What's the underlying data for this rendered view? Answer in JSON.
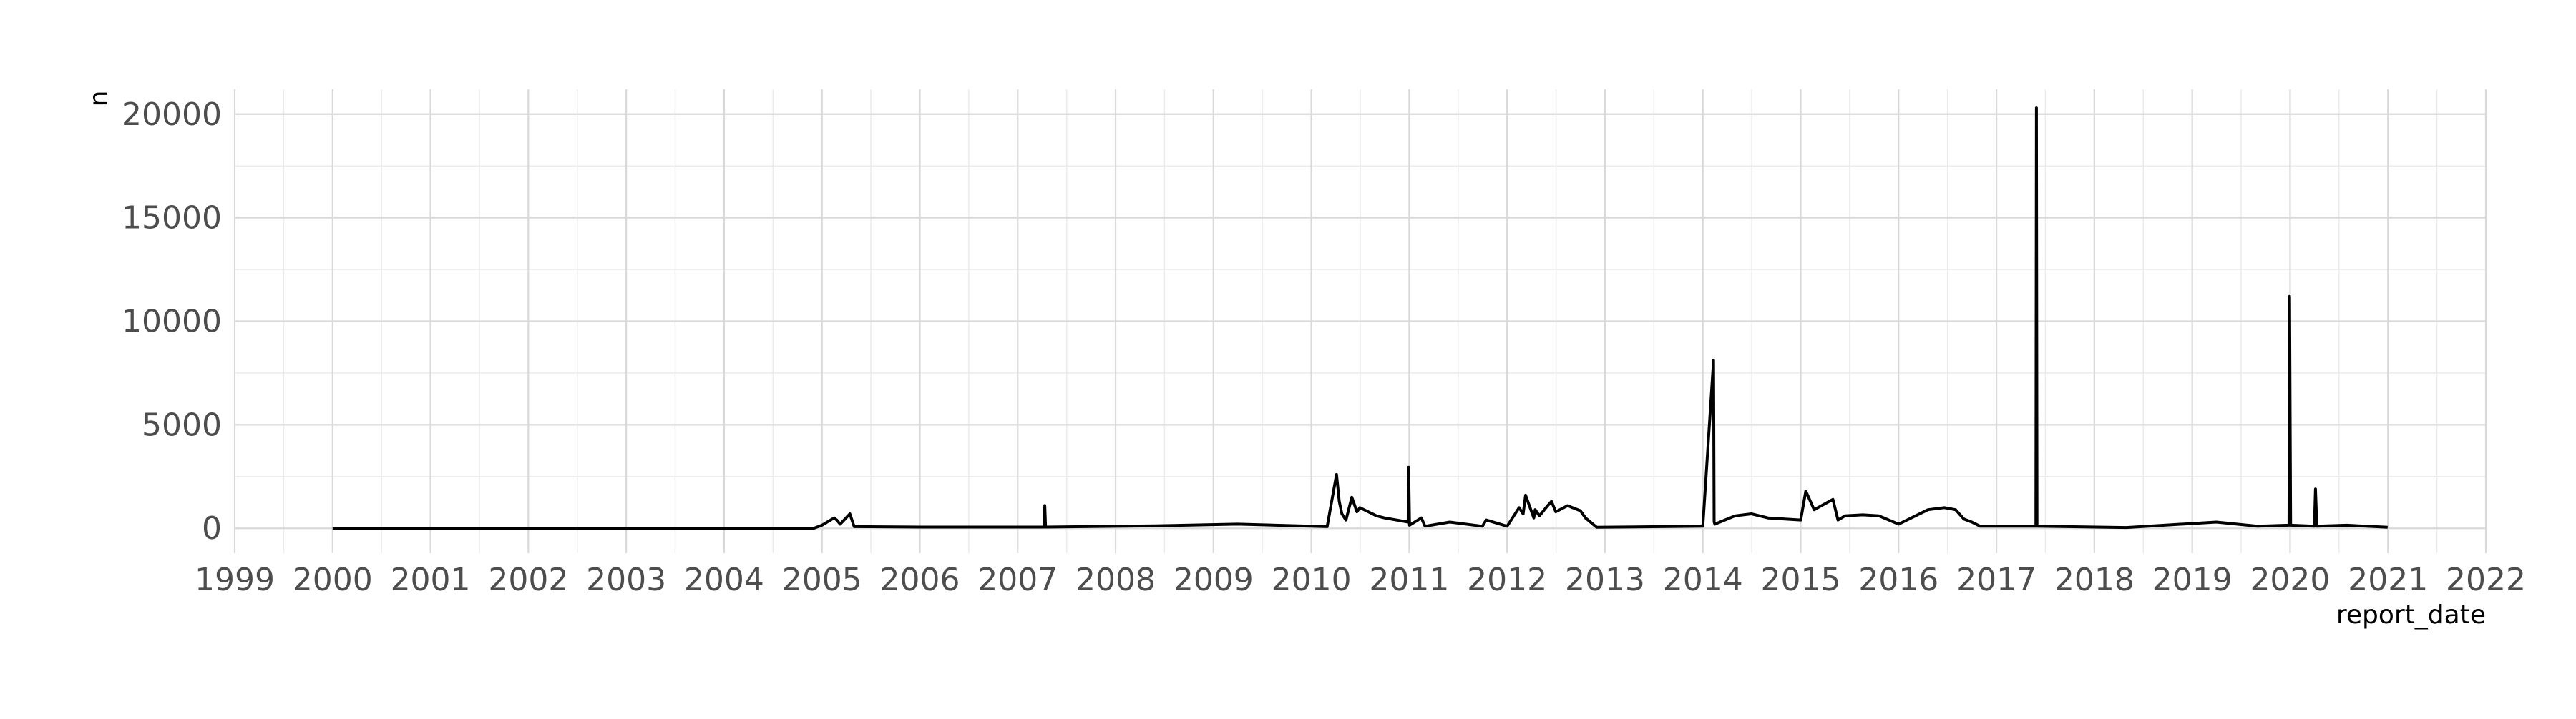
{
  "chart_data": {
    "type": "line",
    "title": "",
    "xlabel": "report_date",
    "ylabel": "n",
    "x_ticks": [
      "1999",
      "2000",
      "2001",
      "2002",
      "2003",
      "2004",
      "2005",
      "2006",
      "2007",
      "2008",
      "2009",
      "2010",
      "2011",
      "2012",
      "2013",
      "2014",
      "2015",
      "2016",
      "2017",
      "2018",
      "2019",
      "2020",
      "2021",
      "2022"
    ],
    "y_ticks": [
      "0",
      "5000",
      "10000",
      "15000",
      "20000"
    ],
    "xlim": [
      "1999-01-01",
      "2022-01-01"
    ],
    "ylim": [
      -1200,
      21200
    ],
    "grid": true,
    "legend": "none",
    "colors": {
      "line": "#000000",
      "grid_major": "#d9d9d9",
      "grid_minor": "#ebebeb",
      "tick_text": "#4d4d4d"
    },
    "series": [
      {
        "x": [
          "2000-01-01",
          "2004-12-01",
          "2005-01-01",
          "2005-02-15",
          "2005-02-25",
          "2005-03-10",
          "2005-04-15",
          "2005-05-01",
          "2006-01-01",
          "2007-04-10",
          "2007-04-12",
          "2007-04-15",
          "2008-06-01",
          "2009-04-01",
          "2010-03-01",
          "2010-04-05",
          "2010-04-15",
          "2010-04-25",
          "2010-05-10",
          "2010-06-01",
          "2010-06-20",
          "2010-07-01",
          "2010-09-01",
          "2010-10-01",
          "2010-12-28",
          "2010-12-30",
          "2011-01-02",
          "2011-02-15",
          "2011-03-01",
          "2011-06-01",
          "2011-10-01",
          "2011-10-15",
          "2012-01-01",
          "2012-02-15",
          "2012-03-01",
          "2012-03-10",
          "2012-04-10",
          "2012-04-15",
          "2012-05-01",
          "2012-06-01",
          "2012-06-15",
          "2012-07-01",
          "2012-08-15",
          "2012-09-01",
          "2012-10-01",
          "2012-10-20",
          "2012-12-01",
          "2014-01-01",
          "2014-02-10",
          "2014-02-12",
          "2014-02-15",
          "2014-05-01",
          "2014-07-01",
          "2014-09-01",
          "2015-01-01",
          "2015-01-20",
          "2015-02-20",
          "2015-05-01",
          "2015-05-20",
          "2015-06-15",
          "2015-08-20",
          "2015-10-20",
          "2016-01-01",
          "2016-04-20",
          "2016-06-20",
          "2016-08-01",
          "2016-09-01",
          "2016-10-01",
          "2016-11-01",
          "2017-05-28",
          "2017-05-30",
          "2017-06-01",
          "2018-05-01",
          "2019-04-01",
          "2019-09-01",
          "2019-12-28",
          "2019-12-30",
          "2020-01-03",
          "2020-04-01",
          "2020-04-05",
          "2020-04-10",
          "2020-08-01",
          "2020-12-31"
        ],
        "y": [
          0,
          0,
          150,
          500,
          400,
          200,
          700,
          80,
          60,
          60,
          1100,
          60,
          120,
          200,
          80,
          2600,
          1300,
          700,
          400,
          1500,
          800,
          1000,
          600,
          500,
          300,
          2950,
          150,
          500,
          100,
          300,
          100,
          400,
          100,
          1000,
          700,
          1600,
          500,
          900,
          600,
          1100,
          1300,
          800,
          1100,
          1000,
          850,
          500,
          50,
          100,
          8100,
          300,
          200,
          600,
          700,
          500,
          400,
          1800,
          900,
          1400,
          400,
          600,
          650,
          600,
          200,
          900,
          1000,
          900,
          450,
          300,
          100,
          100,
          20300,
          100,
          40,
          300,
          100,
          150,
          11200,
          150,
          100,
          1900,
          100,
          150,
          50
        ]
      }
    ]
  }
}
